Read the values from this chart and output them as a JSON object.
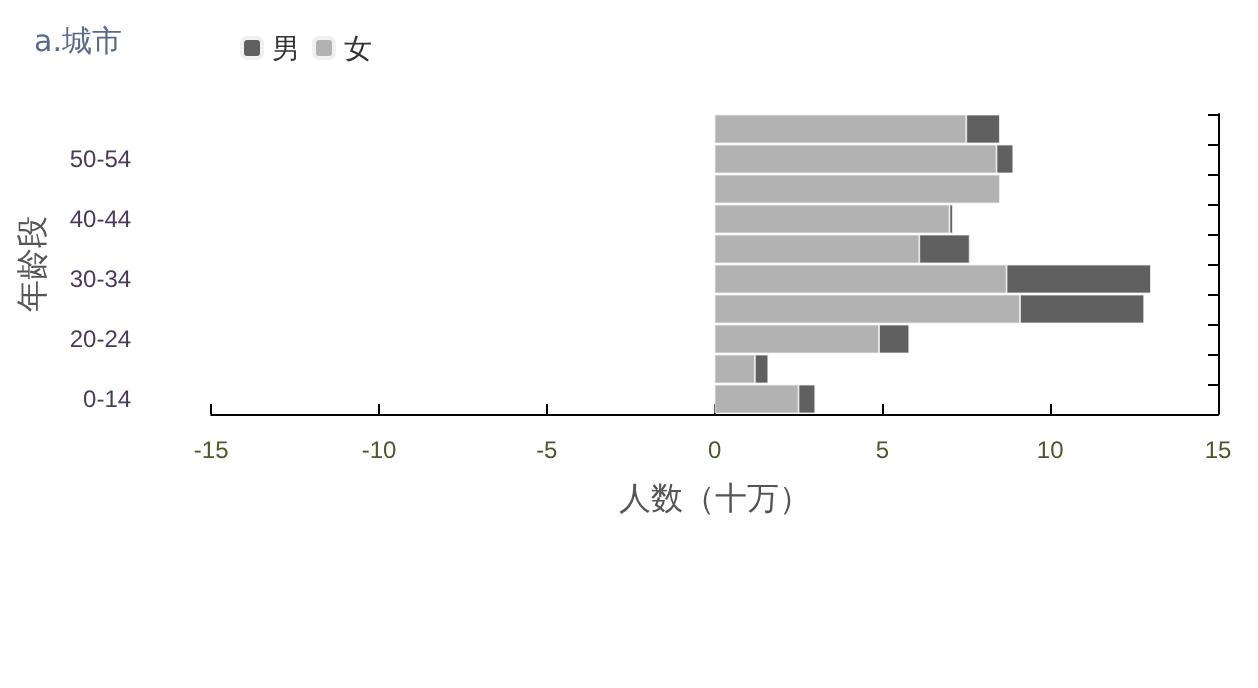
{
  "chart_data": {
    "type": "bar",
    "orientation": "horizontal",
    "stacked": true,
    "title": "a.城市",
    "xlabel": "人数（十万）",
    "ylabel": "年龄段",
    "categories": [
      null,
      "50-54",
      null,
      "40-44",
      null,
      "30-34",
      null,
      "20-24",
      null,
      "0-14"
    ],
    "series": [
      {
        "name": "女",
        "color": "#b2b2b2",
        "values": [
          7.5,
          8.4,
          8.5,
          7.0,
          6.1,
          8.7,
          9.1,
          4.9,
          1.2,
          2.5
        ]
      },
      {
        "name": "男",
        "color": "#606060",
        "values": [
          1.0,
          0.5,
          null,
          0.1,
          1.5,
          4.3,
          3.7,
          0.9,
          0.4,
          0.5
        ]
      }
    ],
    "xlim": [
      -15,
      15
    ],
    "xticks": [
      -15,
      -10,
      -5,
      0,
      5,
      10,
      15
    ],
    "legend": "top",
    "grid": false
  }
}
